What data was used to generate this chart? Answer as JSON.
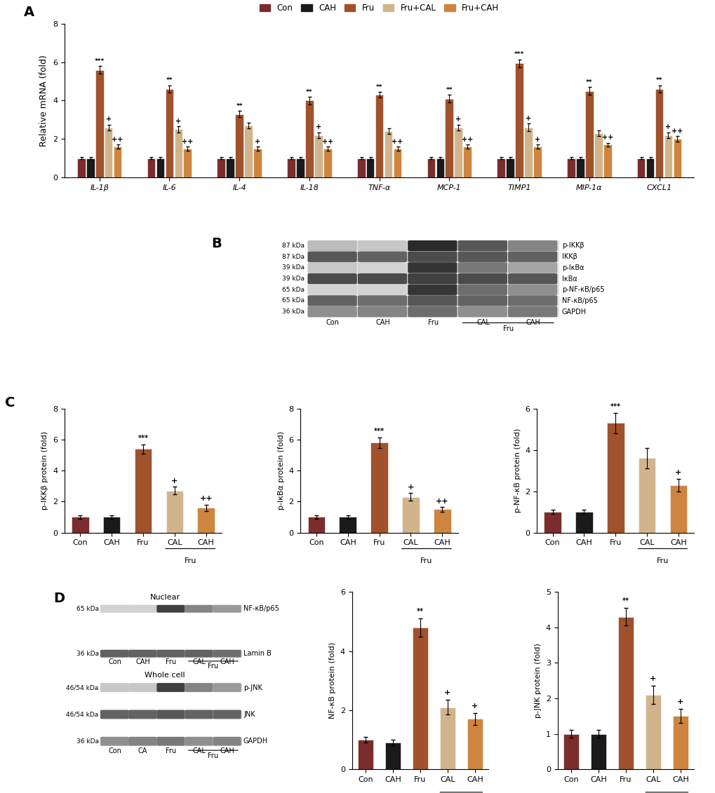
{
  "panel_A": {
    "ylabel": "Relative mRNA (fold)",
    "ylim": [
      0,
      8
    ],
    "yticks": [
      0,
      2,
      4,
      6,
      8
    ],
    "groups": [
      "IL-1β",
      "IL-6",
      "IL-4",
      "IL-18",
      "TNF-α",
      "MCP-1",
      "TIMP1",
      "MIP-1α",
      "CXCL1"
    ],
    "series": {
      "Con": {
        "color": "#7B2D2D",
        "values": [
          1.0,
          1.0,
          1.0,
          1.0,
          1.0,
          1.0,
          1.0,
          1.0,
          1.0
        ],
        "errors": [
          0.06,
          0.06,
          0.06,
          0.06,
          0.06,
          0.06,
          0.06,
          0.06,
          0.06
        ]
      },
      "CAH": {
        "color": "#1a1a1a",
        "values": [
          1.0,
          1.0,
          1.0,
          1.0,
          1.0,
          1.0,
          1.0,
          1.0,
          1.0
        ],
        "errors": [
          0.06,
          0.06,
          0.06,
          0.06,
          0.06,
          0.06,
          0.06,
          0.06,
          0.06
        ]
      },
      "Fru": {
        "color": "#A0522D",
        "values": [
          5.6,
          4.6,
          3.3,
          4.0,
          4.3,
          4.1,
          5.95,
          4.5,
          4.6
        ],
        "errors": [
          0.2,
          0.2,
          0.15,
          0.2,
          0.15,
          0.2,
          0.2,
          0.2,
          0.2
        ]
      },
      "Fru+CAL": {
        "color": "#D2B48C",
        "values": [
          2.6,
          2.5,
          2.7,
          2.2,
          2.4,
          2.6,
          2.6,
          2.3,
          2.2
        ],
        "errors": [
          0.15,
          0.15,
          0.15,
          0.15,
          0.15,
          0.15,
          0.2,
          0.15,
          0.15
        ]
      },
      "Fru+CAH": {
        "color": "#CD853F",
        "values": [
          1.6,
          1.5,
          1.5,
          1.5,
          1.5,
          1.6,
          1.6,
          1.7,
          2.0
        ],
        "errors": [
          0.1,
          0.1,
          0.1,
          0.1,
          0.1,
          0.1,
          0.1,
          0.1,
          0.15
        ]
      }
    },
    "significance_fru": [
      "***",
      "**",
      "**",
      "**",
      "**",
      "**",
      "***",
      "**",
      "**"
    ],
    "significance_cal": [
      "+",
      "+",
      "",
      "+",
      "",
      "+",
      "+",
      "",
      "+"
    ],
    "significance_cah": [
      "++",
      "++",
      "+",
      "++",
      "++",
      "++",
      "+",
      "++",
      "++"
    ],
    "legend_order": [
      "Con",
      "CAH",
      "Fru",
      "Fru+CAL",
      "Fru+CAH"
    ]
  },
  "panel_B": {
    "bands": [
      {
        "label": "p-IKKβ",
        "kda": "87 kDa"
      },
      {
        "label": "IKKβ",
        "kda": "87 kDa"
      },
      {
        "label": "p-IκBα",
        "kda": "39 kDa"
      },
      {
        "label": "IκBα",
        "kda": "39 kDa"
      },
      {
        "label": "p-NF-κB/p65",
        "kda": "65 kDa"
      },
      {
        "label": "NF-κB/p65",
        "kda": "65 kDa"
      },
      {
        "label": "GAPDH",
        "kda": "36 kDa"
      }
    ],
    "band_intensities": [
      [
        0.3,
        0.25,
        0.95,
        0.75,
        0.55
      ],
      [
        0.75,
        0.7,
        0.8,
        0.75,
        0.7
      ],
      [
        0.25,
        0.2,
        0.9,
        0.6,
        0.4
      ],
      [
        0.8,
        0.8,
        0.85,
        0.8,
        0.75
      ],
      [
        0.2,
        0.2,
        0.9,
        0.65,
        0.5
      ],
      [
        0.7,
        0.65,
        0.75,
        0.7,
        0.65
      ],
      [
        0.5,
        0.55,
        0.65,
        0.5,
        0.6
      ]
    ],
    "xlabels": [
      "Con",
      "CAH",
      "Fru",
      "CAL",
      "CAH"
    ]
  },
  "panel_C": {
    "subplots": [
      {
        "ylabel": "p-IKKβ protein (fold)",
        "ylim": [
          0,
          8
        ],
        "yticks": [
          0,
          2,
          4,
          6,
          8
        ],
        "values": [
          1.0,
          1.0,
          5.4,
          2.7,
          1.6
        ],
        "errors": [
          0.1,
          0.1,
          0.3,
          0.25,
          0.2
        ],
        "sig_fru": "***",
        "sig_cal": "+",
        "sig_cah": "++"
      },
      {
        "ylabel": "p-IκBα protein (fold)",
        "ylim": [
          0,
          8
        ],
        "yticks": [
          0,
          2,
          4,
          6,
          8
        ],
        "values": [
          1.0,
          1.0,
          5.8,
          2.3,
          1.5
        ],
        "errors": [
          0.1,
          0.1,
          0.35,
          0.25,
          0.15
        ],
        "sig_fru": "***",
        "sig_cal": "+",
        "sig_cah": "++"
      },
      {
        "ylabel": "p-NF-κB protein (fold)",
        "ylim": [
          0,
          6
        ],
        "yticks": [
          0,
          2,
          4,
          6
        ],
        "values": [
          1.0,
          1.0,
          5.3,
          3.6,
          2.3
        ],
        "errors": [
          0.1,
          0.1,
          0.5,
          0.5,
          0.3
        ],
        "sig_fru": "***",
        "sig_cal": "",
        "sig_cah": "+"
      }
    ],
    "xlabels": [
      "Con",
      "CAH",
      "Fru",
      "CAL",
      "CAH"
    ],
    "bar_colors": [
      "#7B2D2D",
      "#1a1a1a",
      "#A0522D",
      "#D2B48C",
      "#CD853F"
    ]
  },
  "panel_D": {
    "nuclear_bands": [
      {
        "label": "NF-κB/p65",
        "kda": "65 kDa"
      },
      {
        "label": "Lamin B",
        "kda": "36 kDa"
      }
    ],
    "nuclear_intensities": [
      [
        0.2,
        0.2,
        0.85,
        0.55,
        0.45
      ],
      [
        0.7,
        0.7,
        0.7,
        0.7,
        0.65
      ]
    ],
    "nuclear_xlabels": [
      "Con",
      "CAH",
      "Fru",
      "CAL",
      "CAH"
    ],
    "whole_bands": [
      {
        "label": "p-JNK",
        "kda": "46/54 kDa"
      },
      {
        "label": "JNK",
        "kda": "46/54 kDa"
      },
      {
        "label": "GAPDH",
        "kda": "36 kDa"
      }
    ],
    "whole_intensities": [
      [
        0.25,
        0.25,
        0.85,
        0.55,
        0.45
      ],
      [
        0.7,
        0.7,
        0.75,
        0.7,
        0.7
      ],
      [
        0.5,
        0.55,
        0.6,
        0.5,
        0.55
      ]
    ],
    "whole_xlabels": [
      "Con",
      "CA",
      "Fru",
      "CAL",
      "CAH"
    ],
    "subplots": [
      {
        "ylabel": "NF-κB protein (fold)",
        "ylim": [
          0,
          6
        ],
        "yticks": [
          0,
          2,
          4,
          6
        ],
        "values": [
          1.0,
          0.9,
          4.8,
          2.1,
          1.7
        ],
        "errors": [
          0.1,
          0.1,
          0.3,
          0.25,
          0.2
        ],
        "sig_fru": "**",
        "sig_cal": "+",
        "sig_cah": "+"
      },
      {
        "ylabel": "p-JNK protein (fold)",
        "ylim": [
          0,
          5
        ],
        "yticks": [
          0,
          1,
          2,
          3,
          4,
          5
        ],
        "values": [
          1.0,
          1.0,
          4.3,
          2.1,
          1.5
        ],
        "errors": [
          0.1,
          0.1,
          0.25,
          0.25,
          0.2
        ],
        "sig_fru": "**",
        "sig_cal": "+",
        "sig_cah": "+"
      }
    ],
    "xlabels": [
      "Con",
      "CAH",
      "Fru",
      "CAL",
      "CAH"
    ],
    "bar_colors": [
      "#7B2D2D",
      "#1a1a1a",
      "#A0522D",
      "#D2B48C",
      "#CD853F"
    ]
  },
  "colors": {
    "Con": "#7B2D2D",
    "CAH": "#1a1a1a",
    "Fru": "#A0522D",
    "Fru+CAL": "#D2B48C",
    "Fru+CAH": "#CD853F"
  }
}
